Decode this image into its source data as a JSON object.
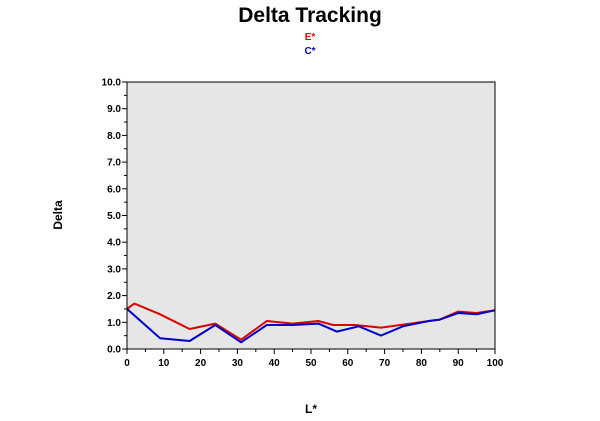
{
  "chart_data": {
    "type": "line",
    "title": "Delta Tracking",
    "xlabel": "L*",
    "ylabel": "Delta",
    "xlim": [
      0,
      100
    ],
    "ylim": [
      0,
      10
    ],
    "grid": false,
    "legend": "top-center",
    "background_color": "#e6e6e6",
    "x_ticks": [
      "0",
      "10",
      "20",
      "30",
      "40",
      "50",
      "60",
      "70",
      "80",
      "90",
      "100"
    ],
    "y_ticks": [
      "0.0",
      "1.0",
      "2.0",
      "3.0",
      "4.0",
      "5.0",
      "6.0",
      "7.0",
      "8.0",
      "9.0",
      "10.0"
    ],
    "series": [
      {
        "name": "E*",
        "color": "#dd0000",
        "x": [
          0,
          2,
          9,
          17,
          24,
          31,
          38,
          45,
          52,
          56,
          62,
          69,
          77,
          82,
          85,
          90,
          95,
          100
        ],
        "y": [
          1.5,
          1.7,
          1.3,
          0.75,
          0.95,
          0.35,
          1.05,
          0.95,
          1.05,
          0.9,
          0.9,
          0.8,
          0.95,
          1.05,
          1.1,
          1.4,
          1.35,
          1.45
        ]
      },
      {
        "name": "C*",
        "color": "#0000cc",
        "x": [
          0,
          9,
          17,
          24,
          31,
          38,
          45,
          52,
          57,
          63,
          69,
          75,
          82,
          85,
          90,
          95,
          100
        ],
        "y": [
          1.5,
          0.4,
          0.3,
          0.9,
          0.25,
          0.9,
          0.9,
          0.95,
          0.65,
          0.85,
          0.5,
          0.85,
          1.05,
          1.1,
          1.35,
          1.3,
          1.45
        ]
      }
    ]
  }
}
